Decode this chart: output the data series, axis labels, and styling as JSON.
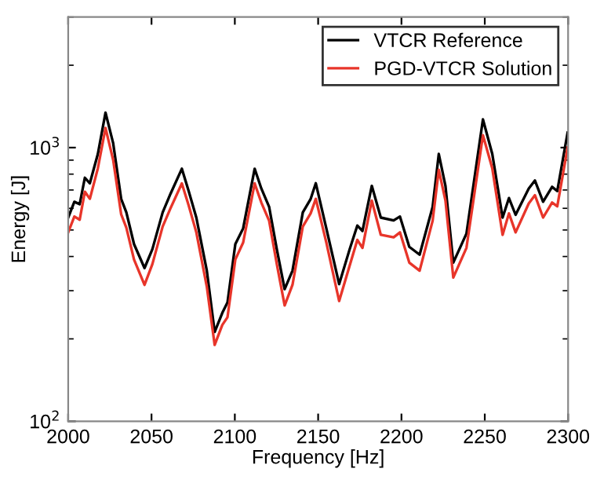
{
  "chart_data": {
    "type": "line",
    "xlabel": "Frequency [Hz]",
    "ylabel": "Energy [J]",
    "log": "y",
    "xlim": [
      2000,
      2300
    ],
    "ylim": [
      100,
      3000
    ],
    "xticks": [
      2000,
      2050,
      2100,
      2150,
      2200,
      2250,
      2300
    ],
    "yticks": [
      {
        "value": 100,
        "label": "10$^{2}$"
      },
      {
        "value": 1000,
        "label": "10$^{3}$"
      }
    ],
    "legend": "top right",
    "grid": false,
    "marker": "none",
    "line_style": "solid",
    "x": [
      2000,
      2003.7,
      2006.9,
      2010,
      2013,
      2017.8,
      2022.4,
      2027,
      2031.8,
      2034.9,
      2039.5,
      2045.8,
      2050.5,
      2056.7,
      2061.4,
      2068.2,
      2072.3,
      2076.9,
      2083.2,
      2087.9,
      2092.5,
      2095.6,
      2100.3,
      2105,
      2111.9,
      2115.9,
      2120.6,
      2125.2,
      2129.9,
      2134.6,
      2140.8,
      2145.5,
      2148.6,
      2154.9,
      2162.6,
      2168.9,
      2173.5,
      2176.6,
      2182.2,
      2187.6,
      2195.3,
      2199.1,
      2204.7,
      2210.9,
      2218.7,
      2222.4,
      2226.4,
      2231.1,
      2239,
      2248.9,
      2254.5,
      2260.7,
      2264.5,
      2268.5,
      2276.4,
      2280.1,
      2285,
      2290.4,
      2293.5,
      2299.7
    ],
    "series": [
      {
        "name": "VTCR Reference",
        "color": "#000000",
        "values": [
          555,
          634,
          621,
          776,
          741,
          948,
          1342,
          1037,
          649,
          580,
          444,
          363,
          425,
          580,
          678,
          837,
          694,
          555,
          355,
          212,
          249,
          272,
          444,
          507,
          837,
          709,
          607,
          425,
          304,
          355,
          580,
          649,
          741,
          507,
          317,
          425,
          519,
          496,
          725,
          555,
          542,
          560,
          434,
          406,
          607,
          948,
          725,
          380,
          485,
          1268,
          948,
          555,
          654,
          568,
          709,
          758,
          634,
          719,
          694,
          1133
        ]
      },
      {
        "name": "PGD-VTCR Solution",
        "color": "#e8352a",
        "values": [
          490,
          560,
          545,
          690,
          650,
          840,
          1180,
          900,
          570,
          510,
          390,
          315,
          375,
          515,
          600,
          740,
          615,
          490,
          310,
          190,
          225,
          240,
          390,
          450,
          740,
          630,
          540,
          375,
          265,
          315,
          515,
          575,
          650,
          450,
          275,
          370,
          460,
          430,
          640,
          480,
          470,
          490,
          380,
          355,
          540,
          830,
          640,
          335,
          430,
          1110,
          840,
          480,
          575,
          490,
          625,
          670,
          555,
          630,
          610,
          1000
        ]
      }
    ]
  }
}
